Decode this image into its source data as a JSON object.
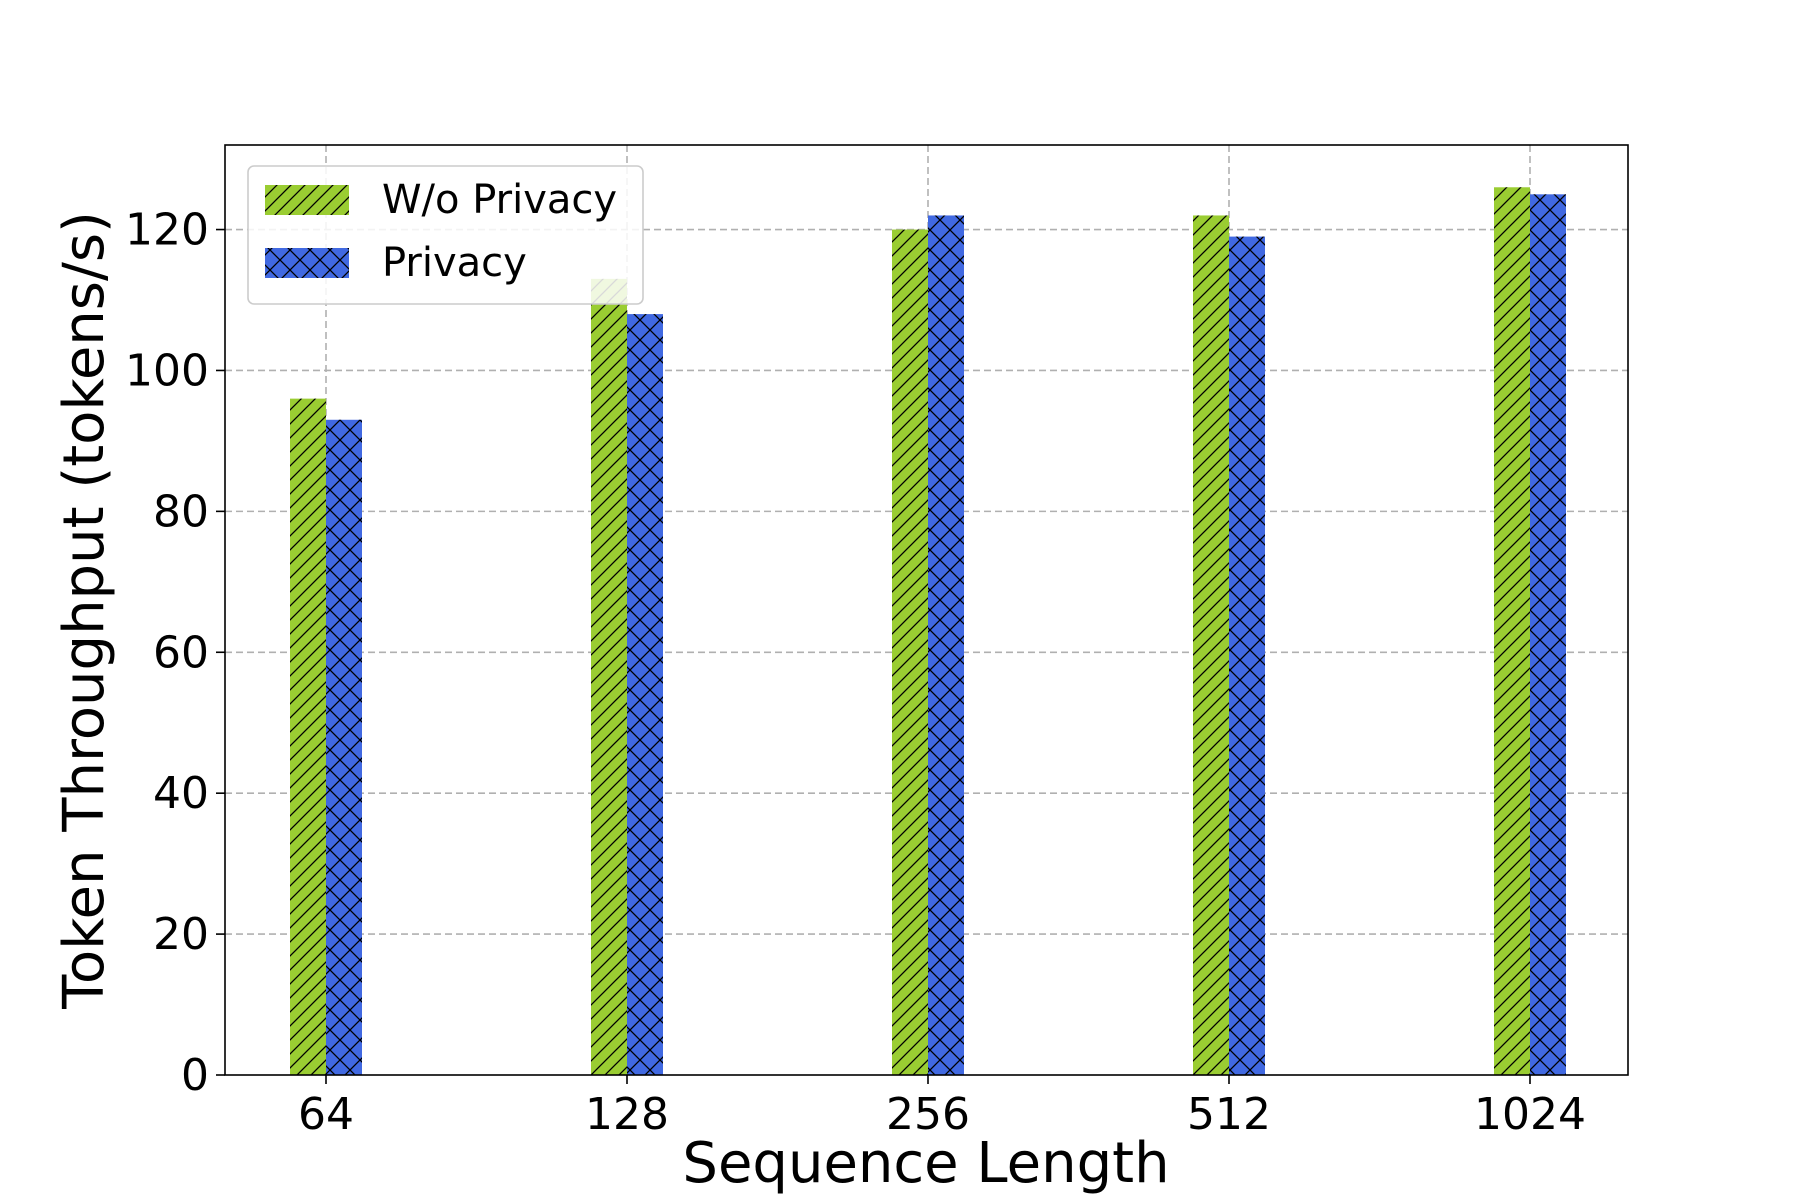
{
  "chart_data": {
    "type": "bar",
    "title": "",
    "xlabel": "Sequence Length",
    "ylabel": "Token Throughput (tokens/s)",
    "categories": [
      "64",
      "128",
      "256",
      "512",
      "1024"
    ],
    "ylim": [
      0,
      132
    ],
    "yticks": [
      0,
      20,
      40,
      60,
      80,
      100,
      120
    ],
    "grid": true,
    "legend_position": "top-left",
    "series": [
      {
        "name": "W/o Privacy",
        "color": "#9acd32",
        "hatch": "diagonal",
        "values": [
          96,
          113,
          120,
          122,
          126
        ]
      },
      {
        "name": "Privacy",
        "color": "#4169e1",
        "hatch": "crosshatch",
        "values": [
          93,
          108,
          122,
          119,
          125
        ]
      }
    ]
  }
}
